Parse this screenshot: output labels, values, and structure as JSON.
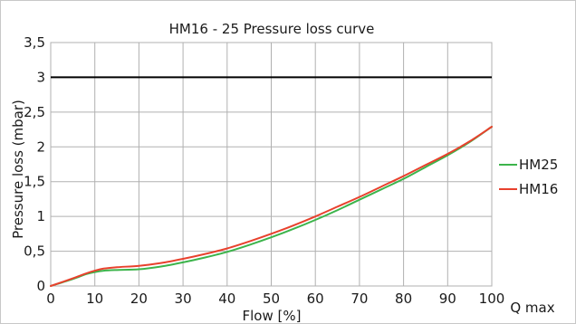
{
  "chart_data": {
    "type": "line",
    "title": "HM16 - 25 Pressure loss curve",
    "xlabel": "Flow [%]",
    "ylabel": "Pressure loss (mbar)",
    "x_unit_label": "Q max",
    "xlim": [
      0,
      100
    ],
    "ylim": [
      0,
      3.5
    ],
    "x_ticks": [
      "0",
      "10",
      "20",
      "30",
      "40",
      "50",
      "60",
      "70",
      "80",
      "90",
      "100"
    ],
    "y_ticks": [
      "0",
      "0,5",
      "1",
      "1,5",
      "2",
      "2,5",
      "3",
      "3,5"
    ],
    "x_tick_values": [
      0,
      10,
      20,
      30,
      40,
      50,
      60,
      70,
      80,
      90,
      100
    ],
    "y_tick_values": [
      0,
      0.5,
      1,
      1.5,
      2,
      2.5,
      3,
      3.5
    ],
    "grid": true,
    "legend_position": "right",
    "reference_line": {
      "y": 3,
      "color": "#000000"
    },
    "series": [
      {
        "name": "HM25",
        "color": "#3cb44b",
        "x": [
          0,
          5,
          8,
          10,
          12,
          15,
          20,
          25,
          30,
          35,
          40,
          45,
          50,
          55,
          60,
          65,
          70,
          75,
          80,
          85,
          90,
          95,
          100
        ],
        "y": [
          0,
          0.1,
          0.17,
          0.2,
          0.22,
          0.23,
          0.24,
          0.28,
          0.34,
          0.41,
          0.49,
          0.59,
          0.7,
          0.82,
          0.95,
          1.09,
          1.24,
          1.39,
          1.54,
          1.71,
          1.88,
          2.07,
          2.29
        ]
      },
      {
        "name": "HM16",
        "color": "#e8412d",
        "x": [
          0,
          5,
          8,
          10,
          12,
          15,
          20,
          25,
          30,
          35,
          40,
          45,
          50,
          55,
          60,
          65,
          70,
          75,
          80,
          85,
          90,
          95,
          100
        ],
        "y": [
          0,
          0.11,
          0.18,
          0.22,
          0.25,
          0.27,
          0.29,
          0.33,
          0.39,
          0.46,
          0.54,
          0.64,
          0.75,
          0.87,
          1.0,
          1.14,
          1.28,
          1.43,
          1.58,
          1.74,
          1.9,
          2.08,
          2.29
        ]
      }
    ]
  }
}
